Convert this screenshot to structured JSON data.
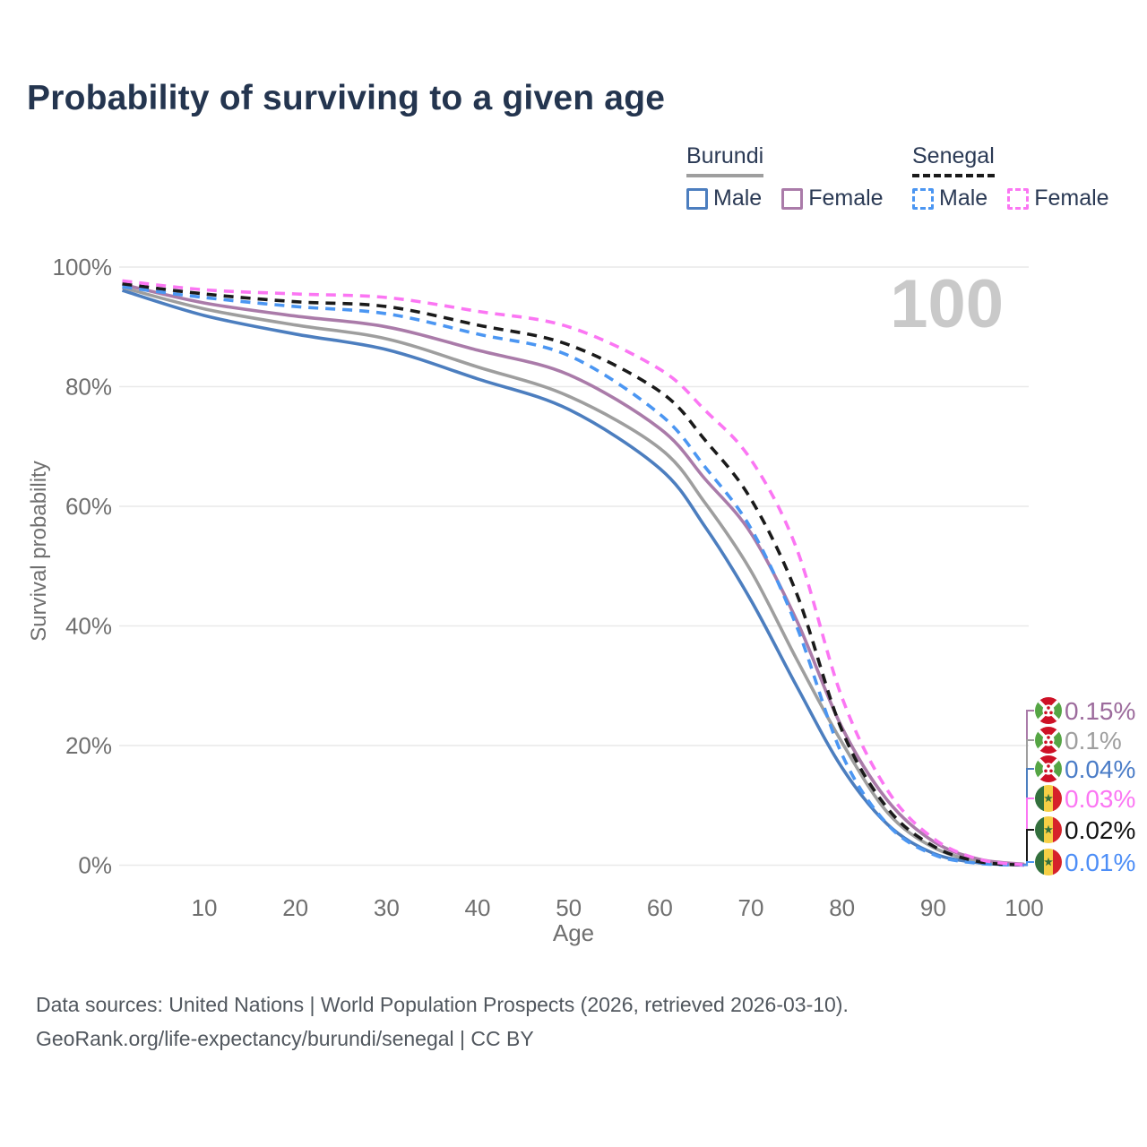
{
  "title": "Probability of surviving to a given age",
  "watermark": "100",
  "legend": {
    "groups": [
      {
        "label": "Burundi",
        "underline_color": "#9e9e9e",
        "underline_style": "solid",
        "items": [
          {
            "label": "Male",
            "color": "#4c7ebf",
            "box_style": "solid"
          },
          {
            "label": "Female",
            "color": "#aa7ba9",
            "box_style": "solid"
          }
        ]
      },
      {
        "label": "Senegal",
        "underline_color": "#1a1a1a",
        "underline_style": "dashed",
        "items": [
          {
            "label": "Male",
            "color": "#4b96f2",
            "box_style": "dashed"
          },
          {
            "label": "Female",
            "color": "#fb76f3",
            "box_style": "dashed"
          }
        ]
      }
    ]
  },
  "chart_data": {
    "type": "line",
    "title": "Probability of surviving to a given age",
    "xlabel": "Age",
    "ylabel": "Survival probability",
    "xlim": [
      1,
      100
    ],
    "ylim": [
      0,
      100
    ],
    "grid": "horizontal-only",
    "x_ticks": [
      10,
      20,
      30,
      40,
      50,
      60,
      70,
      80,
      90,
      100
    ],
    "y_tick_values": [
      100,
      80,
      60,
      40,
      20,
      0
    ],
    "y_tick_labels": [
      "100%",
      "80%",
      "60%",
      "40%",
      "20%",
      "0%"
    ],
    "x": [
      1,
      10,
      20,
      30,
      40,
      50,
      60,
      65,
      70,
      75,
      80,
      85,
      90,
      95,
      100
    ],
    "series": [
      {
        "name": "Burundi Male",
        "country": "Burundi",
        "sex": "Male",
        "color": "#4c7ebf",
        "dash": false,
        "flag": "burundi",
        "end_label": "0.04%",
        "end_label_color": "#4a7cc7",
        "end_row": 2,
        "values": [
          96.1,
          91.9,
          88.8,
          86.2,
          81.3,
          76.2,
          66.3,
          56.5,
          44.3,
          30.0,
          16.3,
          6.8,
          2.0,
          0.4,
          0.04
        ]
      },
      {
        "name": "Burundi",
        "country": "Burundi",
        "sex": "Both",
        "color": "#9e9e9e",
        "dash": false,
        "flag": "burundi",
        "end_label": "0.1%",
        "end_label_color": "#9e9e9e",
        "end_row": 1,
        "values": [
          96.6,
          93.0,
          90.3,
          88.0,
          83.3,
          78.4,
          69.7,
          60.5,
          49.2,
          34.5,
          20.5,
          8.8,
          3.0,
          0.7,
          0.1
        ]
      },
      {
        "name": "Burundi Female",
        "country": "Burundi",
        "sex": "Female",
        "color": "#aa7ba9",
        "dash": false,
        "flag": "burundi",
        "end_label": "0.15%",
        "end_label_color": "#9c6b9c",
        "end_row": 0,
        "values": [
          97.1,
          94.0,
          91.8,
          90.0,
          86.1,
          82.0,
          73.0,
          64.5,
          55.5,
          41.0,
          23.0,
          10.8,
          4.0,
          1.0,
          0.15
        ]
      },
      {
        "name": "Senegal Male",
        "country": "Senegal",
        "sex": "Male",
        "color": "#4b96f2",
        "dash": true,
        "flag": "senegal",
        "end_label": "0.01%",
        "end_label_color": "#4d8ef7",
        "end_row": 5,
        "values": [
          96.7,
          94.9,
          93.4,
          92.2,
          88.8,
          85.2,
          75.4,
          66.5,
          56.3,
          40.0,
          18.5,
          6.8,
          1.8,
          0.3,
          0.01
        ]
      },
      {
        "name": "Senegal",
        "country": "Senegal",
        "sex": "Both",
        "color": "#1a1a1a",
        "dash": true,
        "flag": "senegal",
        "end_label": "0.02%",
        "end_label_color": "#111111",
        "end_row": 4,
        "values": [
          97.2,
          95.5,
          94.2,
          93.4,
          90.3,
          87.0,
          79.2,
          71.0,
          61.2,
          45.5,
          22.5,
          9.5,
          3.2,
          0.6,
          0.02
        ]
      },
      {
        "name": "Senegal Female",
        "country": "Senegal",
        "sex": "Female",
        "color": "#fb76f3",
        "dash": true,
        "flag": "senegal",
        "end_label": "0.03%",
        "end_label_color": "#fb76f3",
        "end_row": 3,
        "values": [
          97.7,
          96.2,
          95.5,
          94.9,
          92.6,
          90.0,
          82.9,
          76.0,
          67.8,
          53.0,
          28.0,
          12.5,
          4.5,
          1.0,
          0.03
        ]
      }
    ]
  },
  "footer": {
    "line1": "Data sources: United Nations | World Population Prospects (2026, retrieved 2026-03-10).",
    "line2": "GeoRank.org/life-expectancy/burundi/senegal | CC BY"
  }
}
